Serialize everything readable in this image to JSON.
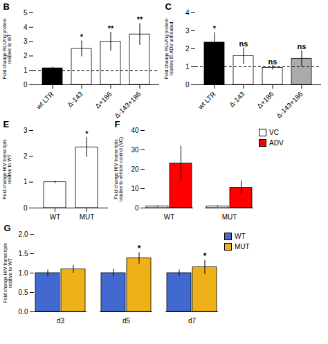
{
  "chart_data": [
    {
      "type": "bar",
      "title": "B",
      "categories": [
        "wt LTR",
        "Δ-143",
        "Δ+186",
        "Δ-143+186"
      ],
      "values": [
        1.15,
        2.5,
        3.0,
        3.5
      ],
      "errors": [
        0.08,
        0.55,
        0.65,
        0.75
      ],
      "significance": [
        null,
        "*",
        "**",
        "**"
      ],
      "colors": [
        "black",
        "white",
        "white",
        "white"
      ],
      "ylabel": "Fold change RLU/ng protein\nrelative to WT",
      "ylim": [
        0,
        5
      ],
      "yticks": [
        0,
        1,
        2,
        3,
        4,
        5
      ],
      "hline": 1.0
    },
    {
      "type": "bar",
      "title": "C",
      "categories": [
        "wt LTR",
        "Δ-143",
        "Δ+186",
        "Δ-143+186"
      ],
      "values": [
        2.35,
        1.6,
        0.95,
        1.45
      ],
      "errors": [
        0.55,
        0.45,
        0.12,
        0.45
      ],
      "significance": [
        "*",
        "ns",
        "ns",
        "ns"
      ],
      "colors": [
        "black",
        "white",
        "white",
        "#aaaaaa"
      ],
      "ylabel": "Fold change RLU/ng protein\nrelative to ADV untreated",
      "ylim": [
        0,
        4
      ],
      "yticks": [
        0,
        1,
        2,
        3,
        4
      ],
      "hline": 1.0
    },
    {
      "type": "bar",
      "title": "E",
      "categories": [
        "WT",
        "MUT"
      ],
      "values": [
        1.0,
        2.35
      ],
      "errors": [
        0.05,
        0.38
      ],
      "significance": [
        null,
        "*"
      ],
      "colors": [
        "white",
        "white"
      ],
      "ylabel": "Fold change HIV transcripts\nrelative to WT",
      "ylim": [
        0,
        3
      ],
      "yticks": [
        0,
        1,
        2,
        3
      ]
    },
    {
      "type": "bar",
      "title": "F",
      "categories": [
        "WT",
        "MUT"
      ],
      "series": [
        {
          "name": "VC",
          "color": "white",
          "values": [
            0.8,
            0.8
          ],
          "errors": [
            0.3,
            0.3
          ]
        },
        {
          "name": "ADV",
          "color": "#ff0000",
          "values": [
            23.0,
            10.5
          ],
          "errors": [
            9.0,
            3.5
          ]
        }
      ],
      "ylabel": "Fold change HIV transcripts\nrelative to vehicle control (VC)",
      "ylim": [
        0,
        40
      ],
      "yticks": [
        0,
        10,
        20,
        30,
        40
      ],
      "legend": "upper right"
    },
    {
      "type": "bar",
      "title": "G",
      "categories": [
        "d3",
        "d5",
        "d7"
      ],
      "series": [
        {
          "name": "WT",
          "values": [
            1.0,
            1.0,
            1.0
          ],
          "errors": [
            0.08,
            0.1,
            0.08
          ]
        },
        {
          "name": "MUT",
          "values": [
            1.1,
            1.38,
            1.15
          ],
          "errors": [
            0.1,
            0.15,
            0.18
          ],
          "significance": [
            null,
            "*",
            "*"
          ]
        }
      ],
      "ylabel": "Fold change HIV transcripts\nrelative to WT",
      "ylim": [
        0,
        2.0
      ],
      "yticks": [
        {
          "value": 0,
          "label": "0.0"
        },
        0.5,
        {
          "value": 1.0,
          "label": "1.0"
        },
        1.5,
        {
          "value": 2.0,
          "label": "2.0"
        }
      ],
      "legend": "upper right"
    }
  ]
}
